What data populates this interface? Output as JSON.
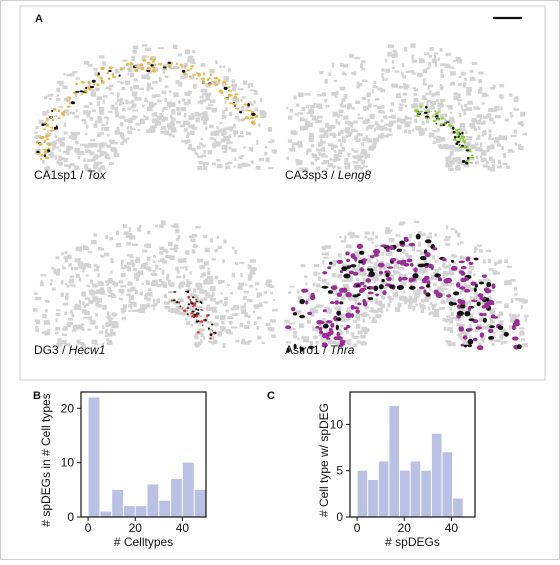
{
  "panel_labels": {
    "a": "A",
    "b": "B",
    "c": "C"
  },
  "colors": {
    "tissue": "#d3d3d3",
    "tox": "#e8b84a",
    "leng8": "#8ccf2e",
    "hecw1": "#e23b2e",
    "thra": "#9b2d96",
    "bar_fill": "#b9c1e4",
    "black": "#111111"
  },
  "maps": [
    {
      "celltype": "CA1sp1 /",
      "gene": "Tox"
    },
    {
      "celltype": "CA3sp3 /",
      "gene": "Leng8"
    },
    {
      "celltype": "DG3 /",
      "gene": "Hecw1"
    },
    {
      "celltype": "Astro1 /",
      "gene": "Thra"
    }
  ],
  "chart_data": [
    {
      "type": "bar",
      "panel": "B",
      "xlabel": "# Celltypes",
      "ylabel": "# spDEGs in # Cell types",
      "xlim": [
        -3,
        50
      ],
      "ylim": [
        0,
        23
      ],
      "bin_width": 5,
      "x": [
        2.5,
        7.5,
        12.5,
        17.5,
        22.5,
        27.5,
        32.5,
        37.5,
        42.5,
        47.5
      ],
      "values": [
        22,
        1,
        5,
        2,
        2,
        6,
        3,
        7,
        10,
        5
      ],
      "xticks": [
        "0",
        "20",
        "40"
      ],
      "xtick_values": [
        0,
        20,
        40
      ],
      "yticks": [
        "0",
        "10",
        "20"
      ],
      "ytick_values": [
        0,
        10,
        20
      ]
    },
    {
      "type": "bar",
      "panel": "C",
      "xlabel": "# spDEGs",
      "ylabel": "# Cell type w/ spDEG",
      "xlim": [
        -3,
        50
      ],
      "ylim": [
        0,
        13.5
      ],
      "bin_width": 4.5,
      "x": [
        2.25,
        6.75,
        11.25,
        15.75,
        20.25,
        24.75,
        29.25,
        33.75,
        38.25,
        42.75
      ],
      "values": [
        5,
        4,
        6,
        12,
        5,
        6,
        5,
        9,
        7,
        2
      ],
      "xticks": [
        "0",
        "20",
        "40"
      ],
      "xtick_values": [
        0,
        20,
        40
      ],
      "yticks": [
        "0",
        "5",
        "10"
      ],
      "ytick_values": [
        0,
        5,
        10
      ]
    }
  ]
}
